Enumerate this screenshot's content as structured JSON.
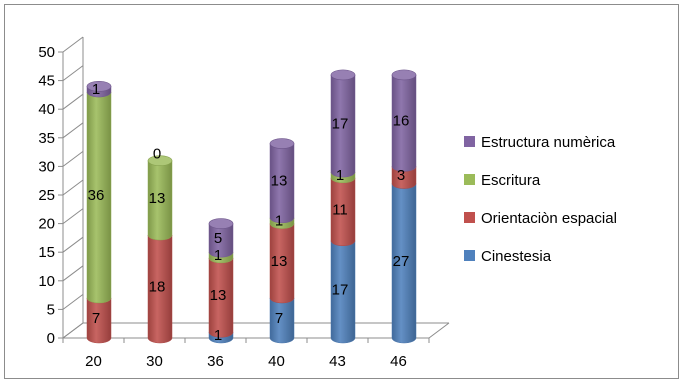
{
  "chart_data": {
    "type": "bar",
    "stacked": true,
    "style": "3d-cylinder",
    "categories": [
      "20",
      "30",
      "36",
      "40",
      "43",
      "46"
    ],
    "series": [
      {
        "name": "Cinestesia",
        "values": [
          0,
          0,
          1,
          7,
          17,
          27
        ],
        "color": "#4f81bd"
      },
      {
        "name": "Orientaciòn espacial",
        "values": [
          7,
          18,
          13,
          13,
          11,
          3
        ],
        "color": "#c0504d"
      },
      {
        "name": "Escritura",
        "values": [
          36,
          13,
          1,
          1,
          1,
          0
        ],
        "color": "#9bbb59"
      },
      {
        "name": "Estructura numèrica",
        "values": [
          1,
          0,
          5,
          13,
          17,
          16
        ],
        "color": "#8064a2"
      }
    ],
    "data_labels": [
      [
        "",
        "",
        "1",
        "7",
        "17",
        "27"
      ],
      [
        "7",
        "18",
        "13",
        "13",
        "11",
        "3"
      ],
      [
        "36",
        "13",
        "1",
        "1",
        "1",
        ""
      ],
      [
        "1",
        "0",
        "5",
        "13",
        "17",
        "16"
      ]
    ],
    "yticks": [
      "0",
      "5",
      "10",
      "15",
      "20",
      "25",
      "30",
      "35",
      "40",
      "45",
      "50"
    ],
    "ylim": [
      0,
      50
    ],
    "title": "",
    "xlabel": "",
    "ylabel": "",
    "grid": false,
    "legend_position": "right",
    "legend_order": [
      3,
      2,
      1,
      0
    ]
  }
}
